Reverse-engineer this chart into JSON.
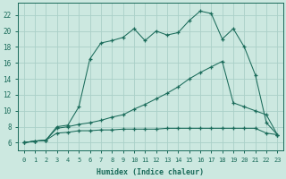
{
  "bg_color": "#cce8e0",
  "grid_color": "#aad0c8",
  "line_color": "#1a6b5a",
  "xlabel": "Humidex (Indice chaleur)",
  "x_ticks": [
    0,
    1,
    2,
    3,
    4,
    5,
    6,
    7,
    8,
    9,
    10,
    11,
    12,
    13,
    14,
    15,
    16,
    17,
    18,
    19,
    20,
    21,
    22,
    23
  ],
  "y_ticks": [
    6,
    8,
    10,
    12,
    14,
    16,
    18,
    20,
    22
  ],
  "xlim": [
    -0.5,
    23.5
  ],
  "ylim": [
    5.0,
    23.5
  ],
  "series_top_x": [
    0,
    1,
    2,
    3,
    4,
    5,
    6,
    7,
    8,
    9,
    10,
    11,
    12,
    13,
    14,
    15,
    16,
    17,
    18,
    19,
    20,
    21,
    22,
    23
  ],
  "series_top_y": [
    6.0,
    6.2,
    6.3,
    8.0,
    8.2,
    10.5,
    16.5,
    18.5,
    18.8,
    19.2,
    20.3,
    18.8,
    20.0,
    19.5,
    19.8,
    21.3,
    22.5,
    22.2,
    19.0,
    20.3,
    18.0,
    14.5,
    8.5,
    7.0
  ],
  "series_mid_x": [
    0,
    1,
    2,
    3,
    4,
    5,
    6,
    7,
    8,
    9,
    10,
    11,
    12,
    13,
    14,
    15,
    16,
    17,
    18,
    19,
    20,
    21,
    22,
    23
  ],
  "series_mid_y": [
    6.0,
    6.2,
    6.3,
    7.8,
    8.0,
    8.3,
    8.5,
    8.8,
    9.2,
    9.5,
    10.2,
    10.8,
    11.5,
    12.2,
    13.0,
    14.0,
    14.8,
    15.5,
    16.2,
    11.0,
    10.5,
    10.0,
    9.5,
    7.0
  ],
  "series_bot_x": [
    0,
    1,
    2,
    3,
    4,
    5,
    6,
    7,
    8,
    9,
    10,
    11,
    12,
    13,
    14,
    15,
    16,
    17,
    18,
    19,
    20,
    21,
    22,
    23
  ],
  "series_bot_y": [
    6.0,
    6.2,
    6.3,
    7.2,
    7.3,
    7.5,
    7.5,
    7.6,
    7.6,
    7.7,
    7.7,
    7.7,
    7.7,
    7.8,
    7.8,
    7.8,
    7.8,
    7.8,
    7.8,
    7.8,
    7.8,
    7.8,
    7.2,
    7.0
  ]
}
